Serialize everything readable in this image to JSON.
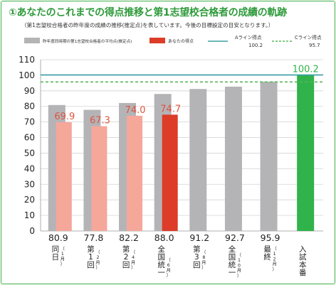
{
  "title": "①あなたのこれまでの得点推移と第1志望校合格者の成績の軌跡",
  "subtitle": "（第1志望校合格者の昨年度の成績の推移(推定点)を表しています。今後の目標設定の目安となります。）",
  "colors": {
    "gray": "#b4b4b7",
    "pink": "#f5a79a",
    "red": "#dc3c28",
    "green": "#2fb34a",
    "a_line": "#3aa0a6",
    "c_line": "#5ab55a",
    "label_red": "#e0533e",
    "label_green": "#2fb34a"
  },
  "chart_data": {
    "type": "bar",
    "title": "①あなたのこれまでの得点推移と第1志望校合格者の成績の軌跡",
    "ylim": [
      0,
      110
    ],
    "yticks": [
      0,
      10,
      20,
      30,
      40,
      50,
      60,
      70,
      80,
      90,
      100,
      110
    ],
    "grid": true,
    "legend_position": "top",
    "categories": [
      {
        "main": "同日",
        "sub": "（1月）"
      },
      {
        "main": "第1回",
        "sub": "（2月）"
      },
      {
        "main": "第2回",
        "sub": "（4月）"
      },
      {
        "main": "全国統一",
        "sub": "（6月）"
      },
      {
        "main": "第3回",
        "sub": "（8月）"
      },
      {
        "main": "全国統一",
        "sub": "（10月）"
      },
      {
        "main": "最終",
        "sub": "（12月）"
      },
      {
        "main": "入試本番",
        "sub": ""
      }
    ],
    "series": [
      {
        "name": "昨年度同時期の第1志望校合格者の平均点(推定点)",
        "values": [
          80.9,
          77.8,
          82.2,
          88.0,
          91.2,
          92.7,
          95.9,
          null
        ]
      },
      {
        "name": "あなたの得点",
        "values": [
          69.9,
          67.3,
          74.0,
          74.7,
          null,
          null,
          null,
          null
        ]
      },
      {
        "name": "",
        "values": [
          null,
          null,
          null,
          null,
          null,
          null,
          null,
          100.2
        ]
      }
    ],
    "gray_value_labels": [
      "80.9",
      "77.8",
      "82.2",
      "88.0",
      "91.2",
      "92.7",
      "95.9",
      ""
    ],
    "your_value_labels": [
      "69.9",
      "67.3",
      "74.0",
      "74.7"
    ],
    "final_value_label": "100.2",
    "reference_lines": [
      {
        "name": "Aライン得点",
        "value": 100.2,
        "label": "100.2"
      },
      {
        "name": "Cライン得点",
        "value": 95.7,
        "label": "95.7"
      }
    ]
  }
}
